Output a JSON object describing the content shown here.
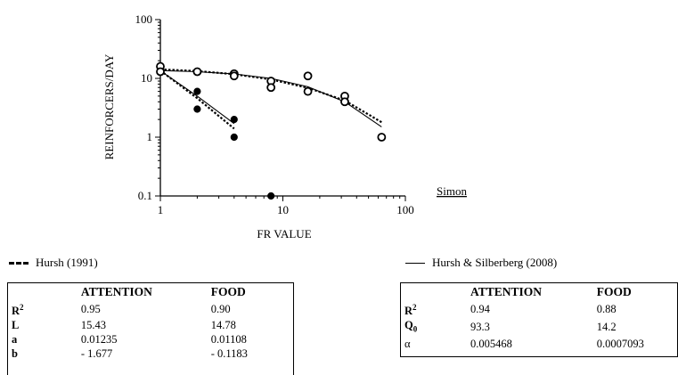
{
  "chart_data": {
    "type": "scatter",
    "title": "",
    "xlabel": "FR VALUE",
    "ylabel": "REINFORCERS/DAY",
    "x_scale": "log",
    "y_scale": "log",
    "xlim": [
      1,
      100
    ],
    "ylim": [
      0.1,
      100
    ],
    "x_ticks": [
      "1",
      "10",
      "100"
    ],
    "y_ticks": [
      "0.1",
      "1",
      "10",
      "100"
    ],
    "annotation": "Simon",
    "series": [
      {
        "marker": "filled-circle",
        "points": [
          [
            1,
            14
          ],
          [
            1,
            15
          ],
          [
            2,
            6
          ],
          [
            2,
            3
          ],
          [
            4,
            2
          ],
          [
            4,
            1
          ],
          [
            8,
            0.1
          ]
        ]
      },
      {
        "marker": "open-circle",
        "points": [
          [
            1,
            16
          ],
          [
            1,
            13
          ],
          [
            2,
            13
          ],
          [
            4,
            12
          ],
          [
            4,
            11
          ],
          [
            8,
            9
          ],
          [
            8,
            7
          ],
          [
            16,
            11
          ],
          [
            16,
            6
          ],
          [
            32,
            5
          ],
          [
            32,
            4
          ],
          [
            64,
            1
          ]
        ]
      }
    ],
    "curves": [
      {
        "style": "dashed",
        "points": [
          [
            1,
            13.6
          ],
          [
            2,
            4.6
          ],
          [
            4,
            1.4
          ]
        ]
      },
      {
        "style": "solid",
        "points": [
          [
            1,
            13.5
          ],
          [
            2,
            5.0
          ],
          [
            4,
            1.7
          ]
        ]
      },
      {
        "style": "dashed",
        "points": [
          [
            1,
            14.2
          ],
          [
            2,
            13.3
          ],
          [
            4,
            11.8
          ],
          [
            8,
            9.6
          ],
          [
            16,
            6.9
          ],
          [
            32,
            4.2
          ],
          [
            64,
            1.8
          ]
        ]
      },
      {
        "style": "solid",
        "points": [
          [
            1,
            13.6
          ],
          [
            2,
            13.0
          ],
          [
            4,
            11.9
          ],
          [
            8,
            10.0
          ],
          [
            16,
            7.2
          ],
          [
            32,
            4.0
          ],
          [
            64,
            1.5
          ]
        ]
      }
    ]
  },
  "legend": {
    "hursh1991": "Hursh (1991)",
    "hursh2008": "Hursh & Silberberg (2008)"
  },
  "table_left": {
    "headers": [
      "",
      "ATTENTION",
      "FOOD"
    ],
    "rows": [
      {
        "param": "R",
        "sup": "2",
        "attention": "0.95",
        "food": "0.90"
      },
      {
        "param": "L",
        "sup": "",
        "attention": "15.43",
        "food": "14.78"
      },
      {
        "param": "a",
        "sup": "",
        "attention": "0.01235",
        "food": "0.01108"
      },
      {
        "param": "b",
        "sup": "",
        "attention": "- 1.677",
        "food": "- 0.1183"
      }
    ]
  },
  "table_right": {
    "headers": [
      "",
      "ATTENTION",
      "FOOD"
    ],
    "rows": [
      {
        "param": "R",
        "sup": "2",
        "sub": "",
        "attention": "0.94",
        "food": "0.88"
      },
      {
        "param": "Q",
        "sup": "",
        "sub": "0",
        "attention": "93.3",
        "food": "14.2"
      },
      {
        "param": "α",
        "sup": "",
        "sub": "",
        "attention": "0.005468",
        "food": "0.0007093"
      }
    ]
  }
}
